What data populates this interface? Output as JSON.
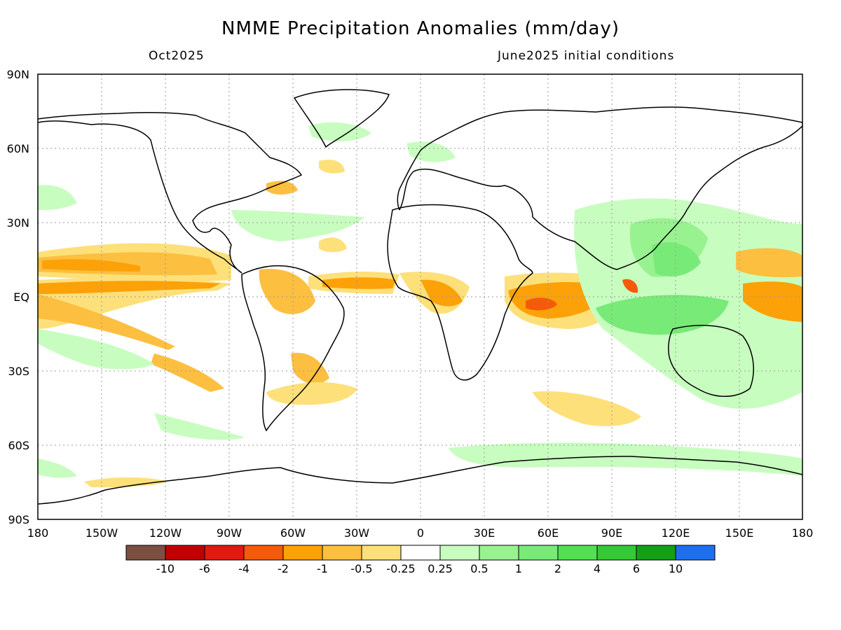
{
  "title": "NMME Precipitation Anomalies (mm/day)",
  "valid_month": "Oct2025",
  "init_label": "June2025 initial conditions",
  "lat_labels": [
    "90N",
    "60N",
    "30N",
    "EQ",
    "30S",
    "60S",
    "90S"
  ],
  "lon_labels": [
    "180",
    "150W",
    "120W",
    "90W",
    "60W",
    "30W",
    "0",
    "30E",
    "60E",
    "90E",
    "120E",
    "150E",
    "180"
  ],
  "colorbar": {
    "colors": [
      "#7b5040",
      "#c00000",
      "#e01a10",
      "#f55a0a",
      "#fca108",
      "#fdbf40",
      "#fde07a",
      "#ffffff",
      "#c8fdc0",
      "#98f290",
      "#78ea78",
      "#50e050",
      "#35c935",
      "#14a014",
      "#1e6ef0"
    ],
    "labels": [
      "-10",
      "-6",
      "-4",
      "-2",
      "-1",
      "-0.5",
      "-0.25",
      "0.25",
      "0.5",
      "1",
      "2",
      "4",
      "6",
      "10"
    ]
  }
}
